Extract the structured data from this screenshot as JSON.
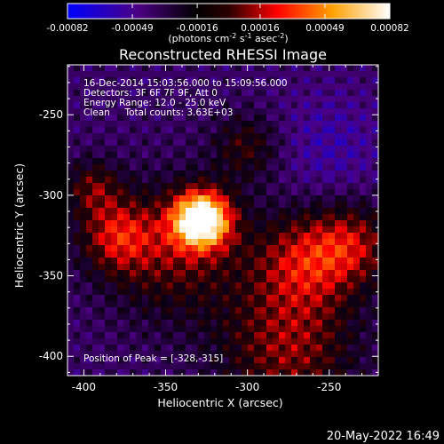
{
  "chart_data": {
    "type": "heatmap",
    "title": "Reconstructed RHESSI Image",
    "colorbar": {
      "min": -0.00082,
      "max": 0.00082,
      "ticks": [
        -0.00082,
        -0.00049,
        -0.00016,
        0.00016,
        0.00049,
        0.00082
      ],
      "tick_labels": [
        "-0.00082",
        "-0.00049",
        "-0.00016",
        "0.00016",
        "0.00049",
        "0.00082"
      ],
      "unit_label_html": "(photons cm<tspan dy=\"-4\" font-size=\"8\">-2</tspan><tspan dy=\"4\"> s</tspan><tspan dy=\"-4\" font-size=\"8\">-1</tspan><tspan dy=\"4\"> asec</tspan><tspan dy=\"-4\" font-size=\"8\">-2</tspan><tspan dy=\"4\">)</tspan>",
      "colormap": [
        "#0000ff",
        "#4b0082",
        "#000000",
        "#ff0000",
        "#ffa000",
        "#ffffff"
      ]
    },
    "xlabel": "Heliocentric X (arcsec)",
    "ylabel": "Heliocentric Y (arcsec)",
    "xlim": [
      -410,
      -220
    ],
    "ylim": [
      -412,
      -219
    ],
    "xticks": [
      -400,
      -350,
      -300,
      -250
    ],
    "xtick_labels": [
      "-400",
      "-350",
      "-300",
      "-250"
    ],
    "yticks": [
      -400,
      -350,
      -300,
      -250
    ],
    "ytick_labels": [
      "-400",
      "-350",
      "-300",
      "-250"
    ],
    "annotation_lines": [
      "16-Dec-2014 15:03:56.000 to 15:09:56.000",
      "Detectors: 3F 6F 7F 9F, Att 0",
      "Energy Range: 12.0 - 25.0 keV",
      "Clean     Total counts: 3.63E+03"
    ],
    "peak_label": "Position of Peak = [-328,-315]",
    "peak_position": [
      -328,
      -315
    ]
  },
  "footer": {
    "timestamp": "20-May-2022 16:49"
  }
}
